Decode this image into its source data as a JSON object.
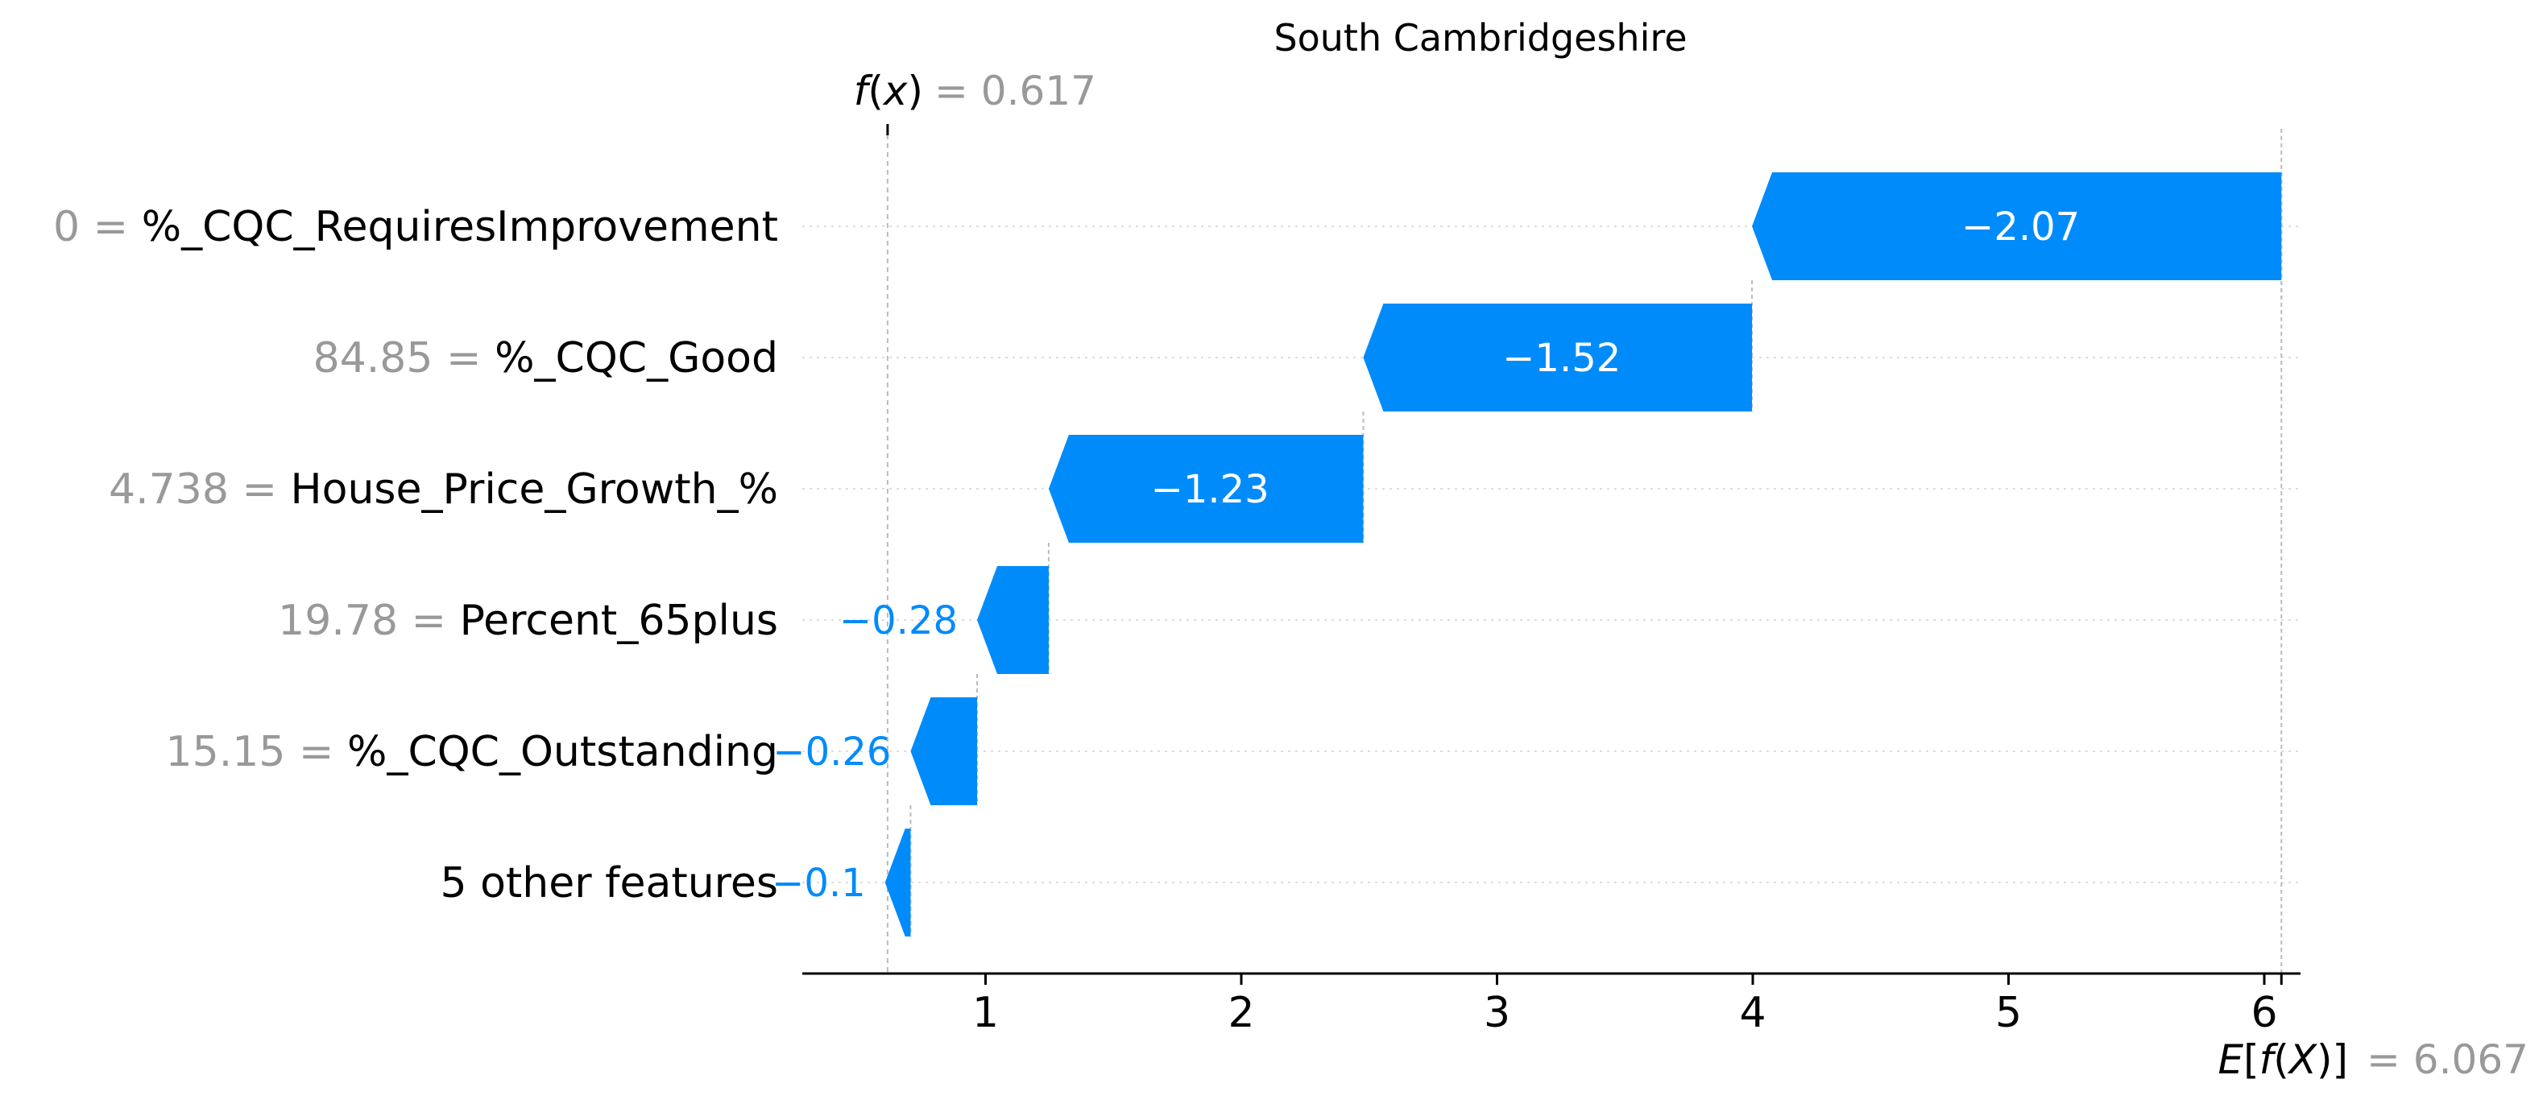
{
  "chart_data": {
    "type": "waterfall",
    "title": "South Cambridgeshire",
    "fx_label": "f(x)",
    "fx_value": "0.617",
    "efx_label": "E[f(X)]",
    "efx_value": "6.067",
    "start_value": 6.067,
    "end_value": 0.617,
    "xlim": [
      0.3,
      6.07
    ],
    "xticks": [
      1,
      2,
      3,
      4,
      5,
      6
    ],
    "colors": {
      "negative": "#008bfb",
      "feature_value": "#999999",
      "text": "#000000"
    },
    "features": [
      {
        "value": "0",
        "name": "%_CQC_RequiresImprovement",
        "contribution": -2.07,
        "label": "−2.07"
      },
      {
        "value": "84.85",
        "name": "%_CQC_Good",
        "contribution": -1.52,
        "label": "−1.52"
      },
      {
        "value": "4.738",
        "name": "House_Price_Growth_%",
        "contribution": -1.23,
        "label": "−1.23"
      },
      {
        "value": "19.78",
        "name": "Percent_65plus",
        "contribution": -0.28,
        "label": "−0.28"
      },
      {
        "value": "15.15",
        "name": "%_CQC_Outstanding",
        "contribution": -0.26,
        "label": "−0.26"
      },
      {
        "value": "",
        "name": "5 other features",
        "contribution": -0.1,
        "label": "−0.1"
      }
    ]
  }
}
